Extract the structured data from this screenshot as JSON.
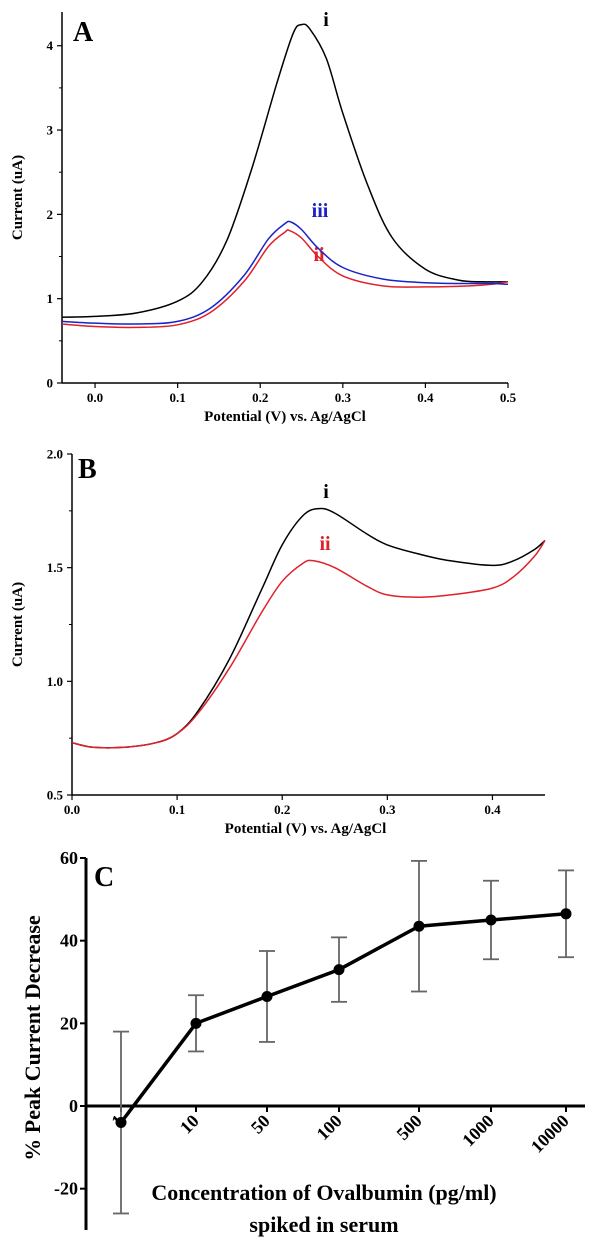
{
  "chart_data": [
    {
      "panel": "A",
      "type": "line",
      "xlabel": "Potential (V) vs. Ag/AgCl",
      "ylabel": "Current (uA)",
      "xlim": [
        -0.04,
        0.5
      ],
      "ylim": [
        0,
        4.4
      ],
      "xticks": [
        "0.0",
        "0.1",
        "0.2",
        "0.3",
        "0.4",
        "0.5"
      ],
      "yticks": [
        "0",
        "1",
        "2",
        "3",
        "4"
      ],
      "series": [
        {
          "name": "i",
          "color": "#000000",
          "x": [
            -0.04,
            0.0,
            0.05,
            0.1,
            0.13,
            0.16,
            0.19,
            0.22,
            0.24,
            0.25,
            0.26,
            0.28,
            0.3,
            0.33,
            0.36,
            0.4,
            0.44,
            0.47,
            0.5
          ],
          "y": [
            0.78,
            0.79,
            0.83,
            0.97,
            1.2,
            1.7,
            2.55,
            3.55,
            4.15,
            4.25,
            4.2,
            3.85,
            3.2,
            2.35,
            1.72,
            1.35,
            1.22,
            1.2,
            1.2
          ]
        },
        {
          "name": "ii",
          "color": "#e0202a",
          "x": [
            -0.04,
            0.0,
            0.05,
            0.1,
            0.14,
            0.18,
            0.21,
            0.23,
            0.235,
            0.25,
            0.27,
            0.3,
            0.35,
            0.4,
            0.45,
            0.48,
            0.5
          ],
          "y": [
            0.7,
            0.67,
            0.66,
            0.69,
            0.84,
            1.2,
            1.62,
            1.79,
            1.81,
            1.72,
            1.5,
            1.27,
            1.15,
            1.14,
            1.15,
            1.17,
            1.2
          ]
        },
        {
          "name": "iii",
          "color": "#1a22c8",
          "x": [
            -0.04,
            0.0,
            0.05,
            0.1,
            0.14,
            0.18,
            0.21,
            0.23,
            0.237,
            0.25,
            0.27,
            0.3,
            0.35,
            0.4,
            0.45,
            0.48,
            0.5
          ],
          "y": [
            0.73,
            0.71,
            0.7,
            0.73,
            0.89,
            1.27,
            1.71,
            1.89,
            1.91,
            1.82,
            1.6,
            1.37,
            1.23,
            1.19,
            1.18,
            1.18,
            1.17
          ]
        }
      ]
    },
    {
      "panel": "B",
      "type": "line",
      "xlabel": "Potential (V) vs. Ag/AgCl",
      "ylabel": "Current (uA)",
      "xlim": [
        0.0,
        0.45
      ],
      "ylim": [
        0.5,
        2.0
      ],
      "xticks": [
        "0.0",
        "0.1",
        "0.2",
        "0.3",
        "0.4"
      ],
      "yticks": [
        "0.5",
        "1.0",
        "1.5",
        "2.0"
      ],
      "series": [
        {
          "name": "i",
          "color": "#000000",
          "x": [
            0.0,
            0.02,
            0.05,
            0.08,
            0.1,
            0.12,
            0.15,
            0.18,
            0.2,
            0.22,
            0.235,
            0.25,
            0.28,
            0.3,
            0.33,
            0.36,
            0.4,
            0.42,
            0.44,
            0.45
          ],
          "y": [
            0.73,
            0.71,
            0.71,
            0.73,
            0.77,
            0.87,
            1.1,
            1.4,
            1.6,
            1.73,
            1.76,
            1.74,
            1.65,
            1.6,
            1.56,
            1.53,
            1.51,
            1.53,
            1.58,
            1.62
          ]
        },
        {
          "name": "ii",
          "color": "#e0202a",
          "x": [
            0.0,
            0.02,
            0.05,
            0.08,
            0.1,
            0.12,
            0.15,
            0.18,
            0.2,
            0.22,
            0.23,
            0.25,
            0.28,
            0.3,
            0.33,
            0.36,
            0.4,
            0.42,
            0.44,
            0.45
          ],
          "y": [
            0.73,
            0.71,
            0.71,
            0.73,
            0.77,
            0.86,
            1.06,
            1.3,
            1.44,
            1.52,
            1.53,
            1.5,
            1.42,
            1.38,
            1.37,
            1.38,
            1.41,
            1.46,
            1.55,
            1.62
          ]
        }
      ]
    },
    {
      "panel": "C",
      "type": "line",
      "xlabel": "Concentration of Ovalbumin (pg/ml)",
      "xlabel2": "spiked in serum",
      "ylabel": "% Peak Current Decrease",
      "ylim": [
        -30,
        60
      ],
      "yticks": [
        "-20",
        "0",
        "20",
        "40",
        "60"
      ],
      "categories": [
        "1",
        "10",
        "50",
        "100",
        "500",
        "1000",
        "10000"
      ],
      "values": [
        -4,
        20,
        26.5,
        33,
        43.5,
        45,
        46.5
      ],
      "errors": [
        22,
        6.8,
        11,
        7.8,
        15.8,
        9.5,
        10.5
      ]
    }
  ]
}
